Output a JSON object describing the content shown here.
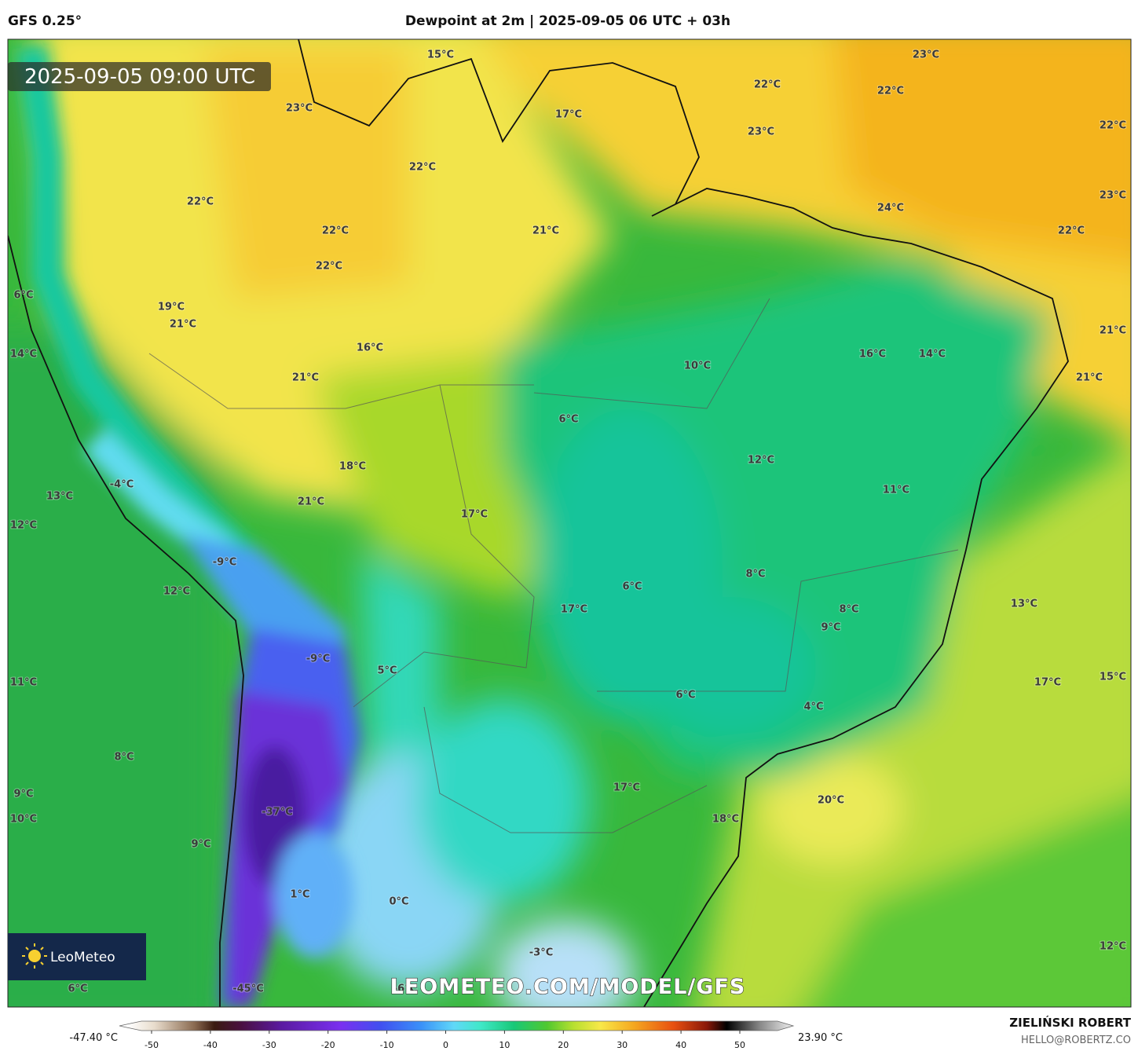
{
  "header": {
    "model": "GFS 0.25°",
    "title": "Dewpoint at 2m | 2025-09-05 06 UTC + 03h"
  },
  "timestamp": "2025-09-05 09:00 UTC",
  "map_labels": [
    "15°C",
    "23°C",
    "22°C",
    "22°C",
    "23°C",
    "17°C",
    "22°C",
    "23°C",
    "22°C",
    "22°C",
    "23°C",
    "24°C",
    "22°C",
    "21°C",
    "22°C",
    "22°C",
    "6°C",
    "19°C",
    "21°C",
    "21°C",
    "16°C",
    "14°C",
    "16°C",
    "14°C",
    "10°C",
    "21°C",
    "21°C",
    "6°C",
    "12°C",
    "18°C",
    "-4°C",
    "11°C",
    "13°C",
    "21°C",
    "17°C",
    "12°C",
    "-9°C",
    "8°C",
    "6°C",
    "12°C",
    "17°C",
    "13°C",
    "8°C",
    "9°C",
    "-9°C",
    "5°C",
    "11°C",
    "17°C",
    "15°C",
    "6°C",
    "4°C",
    "8°C",
    "17°C",
    "9°C",
    "20°C",
    "-37°C",
    "10°C",
    "18°C",
    "9°C",
    "1°C",
    "0°C",
    "12°C",
    "-3°C",
    "-45°C",
    "-6°C",
    "6°C"
  ],
  "watermark": "LEOMETEO.COM/MODEL/GFS",
  "logo": "LeoMeteo",
  "colorbar": {
    "min_label": "-47.40 °C",
    "max_label": "23.90 °C",
    "ticks": [
      -50,
      -40,
      -30,
      -20,
      -10,
      0,
      10,
      20,
      30,
      40,
      50
    ]
  },
  "credit": {
    "name": "ZIELIŃSKI ROBERT",
    "email": "HELLO@ROBERTZ.CO"
  }
}
